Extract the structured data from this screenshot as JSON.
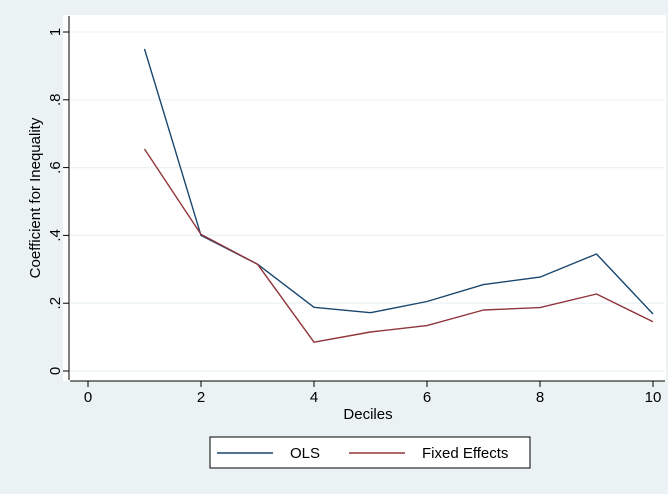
{
  "chart_data": {
    "type": "line",
    "title": "",
    "xlabel": "Deciles",
    "ylabel": "Coefficient for Inequality",
    "x": [
      1,
      2,
      3,
      4,
      5,
      6,
      7,
      8,
      9,
      10
    ],
    "xlim": [
      0,
      10
    ],
    "ylim": [
      0,
      1
    ],
    "xticks": [
      0,
      2,
      4,
      6,
      8,
      10
    ],
    "xtick_labels": [
      "0",
      "2",
      "4",
      "6",
      "8",
      "10"
    ],
    "yticks": [
      0,
      0.2,
      0.4,
      0.6,
      0.8,
      1
    ],
    "ytick_labels": [
      "0",
      ".2",
      ".4",
      ".6",
      ".8",
      "1"
    ],
    "grid": true,
    "legend_position": "bottom",
    "series": [
      {
        "name": "OLS",
        "color": "#1a476f",
        "values": [
          0.95,
          0.4,
          0.315,
          0.188,
          0.172,
          0.205,
          0.255,
          0.277,
          0.345,
          0.168
        ]
      },
      {
        "name": "Fixed Effects",
        "color": "#90353b",
        "values": [
          0.655,
          0.403,
          0.315,
          0.085,
          0.115,
          0.134,
          0.18,
          0.187,
          0.227,
          0.145
        ]
      }
    ]
  }
}
